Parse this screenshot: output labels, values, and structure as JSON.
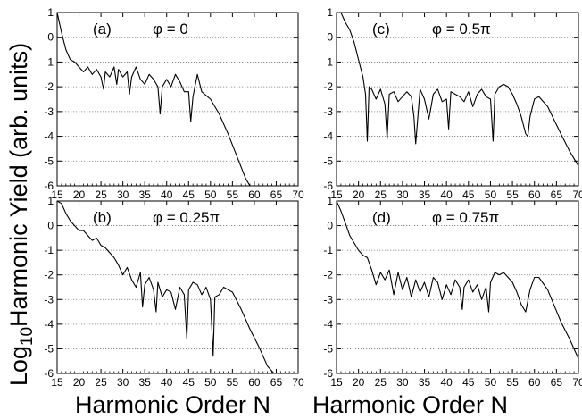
{
  "figure": {
    "ylabel_prefix": "Log",
    "ylabel_sub": "10",
    "ylabel_rest": "Harmonic Yield (arb. units)",
    "xlabel_left": "Harmonic Order N",
    "xlabel_right": "Harmonic Order N"
  },
  "chart_data": [
    {
      "type": "line",
      "panel_label": "(a)",
      "annotation": "φ = 0",
      "xlim": [
        15,
        70
      ],
      "ylim": [
        -6,
        1
      ],
      "xticks": [
        15,
        20,
        25,
        30,
        35,
        40,
        45,
        50,
        55,
        60,
        65,
        70
      ],
      "yticks": [
        1,
        0,
        -1,
        -2,
        -3,
        -4,
        -5,
        -6
      ],
      "grid": "horizontal dotted",
      "series": [
        {
          "x": [
            15,
            16,
            17,
            18,
            19,
            20,
            21,
            22,
            23,
            24,
            25,
            25.6,
            26,
            27,
            28,
            28.6,
            29,
            30,
            31,
            31.5,
            32,
            33,
            34,
            35,
            36,
            37,
            38,
            38.5,
            39,
            40,
            41,
            42,
            43,
            44,
            45,
            45.5,
            46,
            47,
            48,
            50,
            52,
            54,
            56,
            58,
            59
          ],
          "y": [
            1.0,
            0.2,
            -0.5,
            -0.9,
            -1.0,
            -1.2,
            -1.4,
            -1.2,
            -1.5,
            -1.3,
            -1.6,
            -2.1,
            -1.4,
            -1.6,
            -1.2,
            -1.9,
            -1.3,
            -1.6,
            -1.4,
            -2.3,
            -1.6,
            -1.2,
            -1.7,
            -1.9,
            -1.5,
            -1.7,
            -2.0,
            -3.1,
            -2.0,
            -1.7,
            -2.0,
            -1.5,
            -1.8,
            -2.2,
            -2.2,
            -3.4,
            -2.4,
            -1.5,
            -2.2,
            -2.5,
            -3.1,
            -3.9,
            -4.8,
            -5.7,
            -6.0
          ]
        }
      ]
    },
    {
      "type": "line",
      "panel_label": "(c)",
      "annotation": "φ = 0.5π",
      "xlim": [
        15,
        70
      ],
      "ylim": [
        -6,
        1
      ],
      "xticks": [
        15,
        20,
        25,
        30,
        35,
        40,
        45,
        50,
        55,
        60,
        65,
        70
      ],
      "yticks": [
        1,
        0,
        -1,
        -2,
        -3,
        -4,
        -5,
        -6
      ],
      "grid": "horizontal dotted",
      "series": [
        {
          "x": [
            15,
            16,
            17,
            18,
            19,
            20,
            21,
            21.6,
            22,
            22.4,
            23,
            24,
            25,
            26,
            26.5,
            27,
            28,
            29,
            30,
            31,
            32,
            32.6,
            33,
            34,
            35,
            36,
            37,
            38,
            39,
            40,
            40.5,
            41,
            42,
            43,
            44,
            45,
            46,
            47,
            48,
            49,
            50,
            50.6,
            51,
            52,
            53,
            54,
            55,
            56,
            57,
            58,
            58.5,
            59,
            60,
            61,
            63,
            66,
            68,
            70
          ],
          "y": [
            1.0,
            1.0,
            0.6,
            0.3,
            -0.2,
            -0.9,
            -1.6,
            -2.3,
            -4.2,
            -2.0,
            -2.1,
            -2.5,
            -2.1,
            -2.7,
            -4.1,
            -2.3,
            -2.2,
            -2.6,
            -2.4,
            -2.2,
            -2.4,
            -3.2,
            -4.3,
            -2.1,
            -2.5,
            -3.3,
            -2.3,
            -2.1,
            -2.6,
            -2.5,
            -3.7,
            -2.2,
            -2.3,
            -2.4,
            -2.6,
            -2.2,
            -2.8,
            -2.3,
            -2.1,
            -2.4,
            -2.5,
            -4.2,
            -2.3,
            -2.0,
            -1.9,
            -2.0,
            -2.3,
            -2.7,
            -3.2,
            -3.9,
            -4.0,
            -3.2,
            -2.5,
            -2.4,
            -2.8,
            -3.9,
            -4.6,
            -5.2
          ]
        }
      ]
    },
    {
      "type": "line",
      "panel_label": "(b)",
      "annotation": "φ = 0.25π",
      "xlim": [
        15,
        70
      ],
      "ylim": [
        -6,
        1
      ],
      "xticks": [
        15,
        20,
        25,
        30,
        35,
        40,
        45,
        50,
        55,
        60,
        65,
        70
      ],
      "yticks": [
        1,
        0,
        -1,
        -2,
        -3,
        -4,
        -5,
        -6
      ],
      "grid": "horizontal dotted",
      "series": [
        {
          "x": [
            15,
            16,
            17,
            18,
            19,
            20,
            21,
            22,
            23,
            24,
            25,
            26,
            27,
            28,
            29,
            30,
            31,
            32,
            33,
            34,
            34.5,
            35,
            36,
            37,
            37.6,
            38,
            39,
            40,
            41,
            42,
            43,
            44,
            44.6,
            45,
            46,
            47,
            48,
            49,
            50,
            50.6,
            51,
            52,
            53,
            54,
            55,
            57,
            59,
            61,
            63,
            64.5
          ],
          "y": [
            1.0,
            0.9,
            0.5,
            0.2,
            0.0,
            -0.2,
            -0.2,
            -0.4,
            -0.6,
            -0.5,
            -0.8,
            -0.9,
            -1.1,
            -1.3,
            -1.6,
            -2.0,
            -1.7,
            -2.2,
            -2.5,
            -1.9,
            -3.3,
            -2.4,
            -2.1,
            -2.6,
            -3.5,
            -2.3,
            -2.9,
            -2.6,
            -2.7,
            -3.4,
            -2.5,
            -2.8,
            -4.6,
            -2.6,
            -2.3,
            -2.4,
            -2.8,
            -2.5,
            -3.0,
            -5.3,
            -2.9,
            -2.8,
            -2.5,
            -2.6,
            -2.7,
            -3.4,
            -4.2,
            -4.9,
            -5.7,
            -6.0
          ]
        }
      ]
    },
    {
      "type": "line",
      "panel_label": "(d)",
      "annotation": "φ = 0.75π",
      "xlim": [
        15,
        70
      ],
      "ylim": [
        -6,
        1
      ],
      "xticks": [
        15,
        20,
        25,
        30,
        35,
        40,
        45,
        50,
        55,
        60,
        65,
        70
      ],
      "yticks": [
        1,
        0,
        -1,
        -2,
        -3,
        -4,
        -5,
        -6
      ],
      "grid": "horizontal dotted",
      "series": [
        {
          "x": [
            15,
            16,
            17,
            18,
            19,
            20,
            21,
            22,
            23,
            24,
            25,
            26,
            27,
            28,
            29,
            30,
            31,
            32,
            33,
            34,
            35,
            36,
            37,
            38,
            39,
            40,
            41,
            42,
            43,
            43.6,
            44,
            45,
            46,
            47,
            48,
            49,
            49.6,
            50,
            51,
            52,
            53,
            54,
            55,
            56,
            57,
            58,
            59,
            60,
            61,
            63,
            66,
            68,
            70
          ],
          "y": [
            1.0,
            0.6,
            0.1,
            -0.4,
            -0.7,
            -1.0,
            -1.2,
            -1.3,
            -1.8,
            -2.4,
            -1.9,
            -2.2,
            -1.8,
            -2.8,
            -1.9,
            -2.6,
            -2.1,
            -2.9,
            -2.2,
            -2.7,
            -2.3,
            -2.9,
            -2.1,
            -2.3,
            -3.0,
            -2.4,
            -2.8,
            -2.2,
            -2.5,
            -3.4,
            -2.5,
            -2.2,
            -2.7,
            -2.4,
            -3.0,
            -2.5,
            -3.5,
            -2.3,
            -1.9,
            -2.0,
            -1.9,
            -2.1,
            -2.3,
            -2.7,
            -3.2,
            -3.5,
            -2.6,
            -2.1,
            -2.1,
            -2.6,
            -3.9,
            -4.6,
            -5.4
          ]
        }
      ]
    }
  ]
}
